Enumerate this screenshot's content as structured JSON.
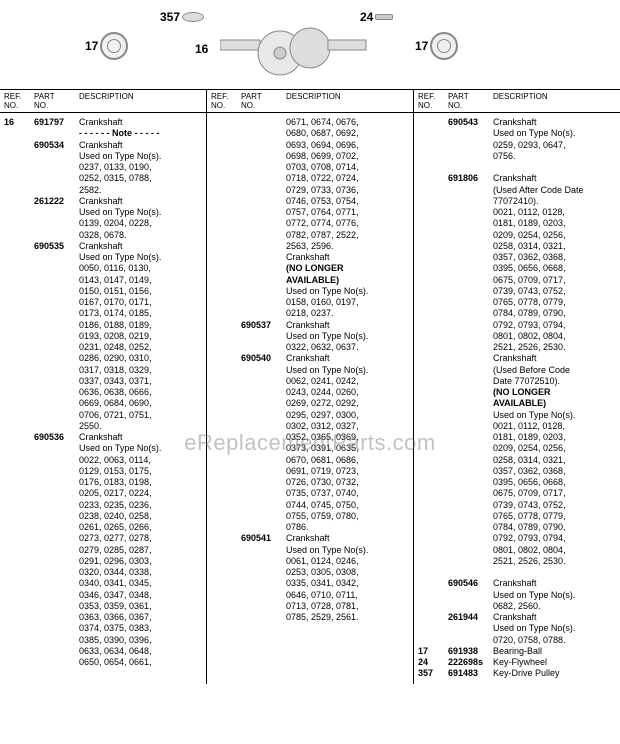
{
  "diagram": {
    "labels": {
      "l357": "357",
      "l24": "24",
      "l17a": "17",
      "l17b": "17",
      "l16": "16"
    }
  },
  "headers": {
    "ref": "REF.\nNO.",
    "part": "PART\nNO.",
    "desc": "DESCRIPTION"
  },
  "col1": {
    "rows": [
      {
        "ref": "16",
        "part": "691797",
        "desc": "Crankshaft"
      },
      {
        "indentPart": "",
        "desc": "- - - - - -  Note  - - - - -",
        "bold": true
      },
      {
        "indentPart": "690534",
        "desc": "Crankshaft"
      },
      {
        "indent": "Used on Type No(s)."
      },
      {
        "indent": "0237, 0133, 0190,"
      },
      {
        "indent": "0252, 0315, 0788,"
      },
      {
        "indent": "2582."
      },
      {
        "indentPart": "261222",
        "desc": "Crankshaft"
      },
      {
        "indent": "Used on Type No(s)."
      },
      {
        "indent": "0139, 0204, 0228,"
      },
      {
        "indent": "0328, 0678."
      },
      {
        "indentPart": "690535",
        "desc": "Crankshaft"
      },
      {
        "indent": "Used on Type No(s)."
      },
      {
        "indent": "0050, 0116, 0130,"
      },
      {
        "indent": "0143, 0147, 0149,"
      },
      {
        "indent": "0150, 0151, 0156,"
      },
      {
        "indent": "0167, 0170, 0171,"
      },
      {
        "indent": "0173, 0174, 0185,"
      },
      {
        "indent": "0186, 0188, 0189,"
      },
      {
        "indent": "0193, 0208, 0219,"
      },
      {
        "indent": "0231, 0248, 0252,"
      },
      {
        "indent": "0286, 0290, 0310,"
      },
      {
        "indent": "0317, 0318, 0329,"
      },
      {
        "indent": "0337, 0343, 0371,"
      },
      {
        "indent": "0636, 0638, 0666,"
      },
      {
        "indent": "0669, 0684, 0690,"
      },
      {
        "indent": "0706, 0721, 0751,"
      },
      {
        "indent": "2550."
      },
      {
        "indentPart": "690536",
        "desc": "Crankshaft"
      },
      {
        "indent": "Used on Type No(s)."
      },
      {
        "indent": "0022, 0063, 0114,"
      },
      {
        "indent": "0129, 0153, 0175,"
      },
      {
        "indent": "0176, 0183, 0198,"
      },
      {
        "indent": "0205, 0217, 0224,"
      },
      {
        "indent": "0233, 0235, 0236,"
      },
      {
        "indent": "0238, 0240, 0258,"
      },
      {
        "indent": "0261, 0265, 0266,"
      },
      {
        "indent": "0273, 0277, 0278,"
      },
      {
        "indent": "0279, 0285, 0287,"
      },
      {
        "indent": "0291, 0296, 0303,"
      },
      {
        "indent": "0320, 0344, 0338,"
      },
      {
        "indent": "0340, 0341, 0345,"
      },
      {
        "indent": "0346, 0347, 0348,"
      },
      {
        "indent": "0353, 0359, 0361,"
      },
      {
        "indent": "0363, 0366, 0367,"
      },
      {
        "indent": "0374, 0375, 0383,"
      },
      {
        "indent": "0385, 0390, 0396,"
      },
      {
        "indent": "0633, 0634, 0648,"
      },
      {
        "indent": "0650, 0654, 0661,"
      }
    ]
  },
  "col2": {
    "rows": [
      {
        "indent": "0671, 0674, 0676,"
      },
      {
        "indent": "0680, 0687, 0692,"
      },
      {
        "indent": "0693, 0694, 0696,"
      },
      {
        "indent": "0698, 0699, 0702,"
      },
      {
        "indent": "0703, 0708, 0714,"
      },
      {
        "indent": "0718, 0722, 0724,"
      },
      {
        "indent": "0729, 0733, 0736,"
      },
      {
        "indent": "0746, 0753, 0754,"
      },
      {
        "indent": "0757, 0764, 0771,"
      },
      {
        "indent": "0772, 0774, 0776,"
      },
      {
        "indent": "0782, 0787, 2522,"
      },
      {
        "indent": "2563, 2596."
      },
      {
        "indentPart": "",
        "desc": "Crankshaft"
      },
      {
        "indent": "(NO LONGER",
        "bold": true
      },
      {
        "indent": "AVAILABLE)",
        "bold": true
      },
      {
        "indent": "Used on Type No(s)."
      },
      {
        "indent": "0158, 0160, 0197,"
      },
      {
        "indent": "0218, 0237."
      },
      {
        "indentPart": "690537",
        "desc": "Crankshaft"
      },
      {
        "indent": "Used on Type No(s)."
      },
      {
        "indent": "0322, 0632, 0637."
      },
      {
        "indentPart": "690540",
        "desc": "Crankshaft"
      },
      {
        "indent": "Used on Type No(s)."
      },
      {
        "indent": "0062, 0241, 0242,"
      },
      {
        "indent": "0243, 0244, 0260,"
      },
      {
        "indent": "0269, 0272, 0292,"
      },
      {
        "indent": "0295, 0297, 0300,"
      },
      {
        "indent": "0302, 0312, 0327,"
      },
      {
        "indent": "0352, 0365, 0369,"
      },
      {
        "indent": "0373, 0391, 0635,"
      },
      {
        "indent": "0670, 0681, 0686,"
      },
      {
        "indent": "0691, 0719, 0723,"
      },
      {
        "indent": "0726, 0730, 0732,"
      },
      {
        "indent": "0735, 0737, 0740,"
      },
      {
        "indent": "0744, 0745, 0750,"
      },
      {
        "indent": "0755, 0759, 0780,"
      },
      {
        "indent": "0786."
      },
      {
        "indentPart": "690541",
        "desc": "Crankshaft"
      },
      {
        "indent": "Used on Type No(s)."
      },
      {
        "indent": "0061, 0124, 0246,"
      },
      {
        "indent": "0253, 0305, 0308,"
      },
      {
        "indent": "0335, 0341, 0342,"
      },
      {
        "indent": "0646, 0710, 0711,"
      },
      {
        "indent": "0713, 0728, 0781,"
      },
      {
        "indent": "0785, 2529, 2561."
      }
    ]
  },
  "col3": {
    "rows": [
      {
        "indentPart": "690543",
        "desc": "Crankshaft"
      },
      {
        "indent": "Used on Type No(s)."
      },
      {
        "indent": "0259, 0293, 0647,"
      },
      {
        "indent": "0756."
      },
      {
        "indent": " "
      },
      {
        "indentPart": "691806",
        "desc": "Crankshaft"
      },
      {
        "indent": "(Used After Code Date"
      },
      {
        "indent": "77072410)."
      },
      {
        "indent": "0021, 0112, 0128,"
      },
      {
        "indent": "0181, 0189, 0203,"
      },
      {
        "indent": "0209, 0254, 0256,"
      },
      {
        "indent": "0258, 0314, 0321,"
      },
      {
        "indent": "0357, 0362, 0368,"
      },
      {
        "indent": "0395, 0656, 0668,"
      },
      {
        "indent": "0675, 0709, 0717,"
      },
      {
        "indent": "0739, 0743, 0752,"
      },
      {
        "indent": "0765, 0778, 0779,"
      },
      {
        "indent": "0784, 0789, 0790,"
      },
      {
        "indent": "0792, 0793, 0794,"
      },
      {
        "indent": "0801, 0802, 0804,"
      },
      {
        "indent": "2521, 2526, 2530."
      },
      {
        "indentPart": "",
        "desc": "Crankshaft"
      },
      {
        "indent": "(Used Before Code"
      },
      {
        "indent": "Date 77072510)."
      },
      {
        "indent": "(NO LONGER",
        "bold": true
      },
      {
        "indent": "AVAILABLE)",
        "bold": true
      },
      {
        "indent": "Used on Type No(s)."
      },
      {
        "indent": "0021, 0112, 0128,"
      },
      {
        "indent": "0181, 0189, 0203,"
      },
      {
        "indent": "0209, 0254, 0256,"
      },
      {
        "indent": "0258, 0314, 0321,"
      },
      {
        "indent": "0357, 0362, 0368,"
      },
      {
        "indent": "0395, 0656, 0668,"
      },
      {
        "indent": "0675, 0709, 0717,"
      },
      {
        "indent": "0739, 0743, 0752,"
      },
      {
        "indent": "0765, 0778, 0779,"
      },
      {
        "indent": "0784, 0789, 0790,"
      },
      {
        "indent": "0792, 0793, 0794,"
      },
      {
        "indent": "0801, 0802, 0804,"
      },
      {
        "indent": "2521, 2526, 2530."
      },
      {
        "indent": " "
      },
      {
        "indentPart": "690546",
        "desc": "Crankshaft"
      },
      {
        "indent": "Used on Type No(s)."
      },
      {
        "indent": "0682, 2560."
      },
      {
        "indentPart": "261944",
        "desc": "Crankshaft"
      },
      {
        "indent": "Used on Type No(s)."
      },
      {
        "indent": "0720, 0758, 0788."
      },
      {
        "ref": "17",
        "part": "691938",
        "desc": "Bearing-Ball"
      },
      {
        "ref": "24",
        "part": "222698s",
        "desc": "Key-Flywheel"
      },
      {
        "ref": "357",
        "part": "691483",
        "desc": "Key-Drive Pulley"
      }
    ]
  },
  "watermark": "eReplacementParts.com"
}
